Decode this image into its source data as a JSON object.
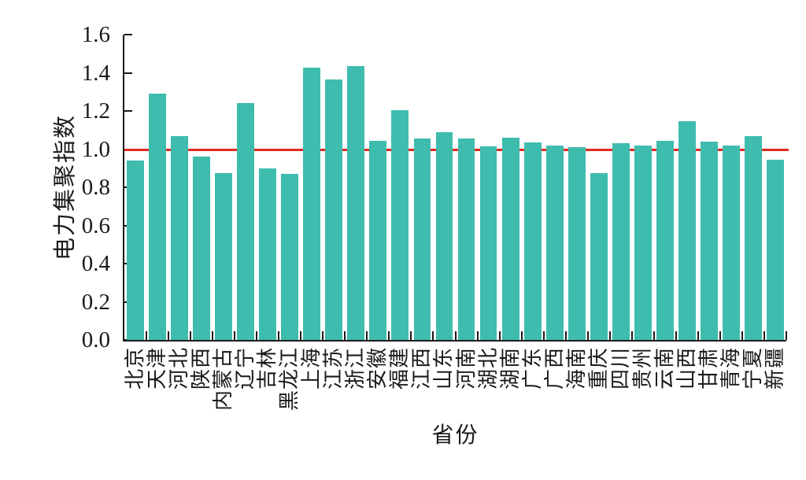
{
  "chart_data": {
    "type": "bar",
    "title": "",
    "xlabel": "省份",
    "ylabel": "电力集聚指数",
    "categories": [
      "北京",
      "天津",
      "河北",
      "陕西",
      "内蒙古",
      "辽宁",
      "吉林",
      "黑龙江",
      "上海",
      "江苏",
      "浙江",
      "安徽",
      "福建",
      "江西",
      "山东",
      "河南",
      "湖北",
      "湖南",
      "广东",
      "广西",
      "海南",
      "重庆",
      "四川",
      "贵州",
      "云南",
      "山西",
      "甘肃",
      "青海",
      "宁夏",
      "新疆"
    ],
    "values": [
      0.94,
      1.29,
      1.07,
      0.96,
      0.875,
      1.24,
      0.9,
      0.87,
      1.425,
      1.365,
      1.435,
      1.045,
      1.205,
      1.055,
      1.09,
      1.055,
      1.015,
      1.06,
      1.035,
      1.02,
      1.01,
      0.875,
      1.03,
      1.02,
      1.045,
      1.145,
      1.04,
      1.02,
      1.07,
      0.945
    ],
    "ylim": [
      0,
      1.6
    ],
    "ytick_step": 0.2,
    "ytick_labels": [
      "0.0",
      "0.2",
      "0.4",
      "0.6",
      "0.8",
      "1.0",
      "1.2",
      "1.4",
      "1.6"
    ],
    "reference_line": {
      "value": 1.0,
      "color": "#df2b1e"
    },
    "bar_color": "#3ebcae",
    "axis_color": "#1a1a1a",
    "grid": false,
    "legend": null
  }
}
